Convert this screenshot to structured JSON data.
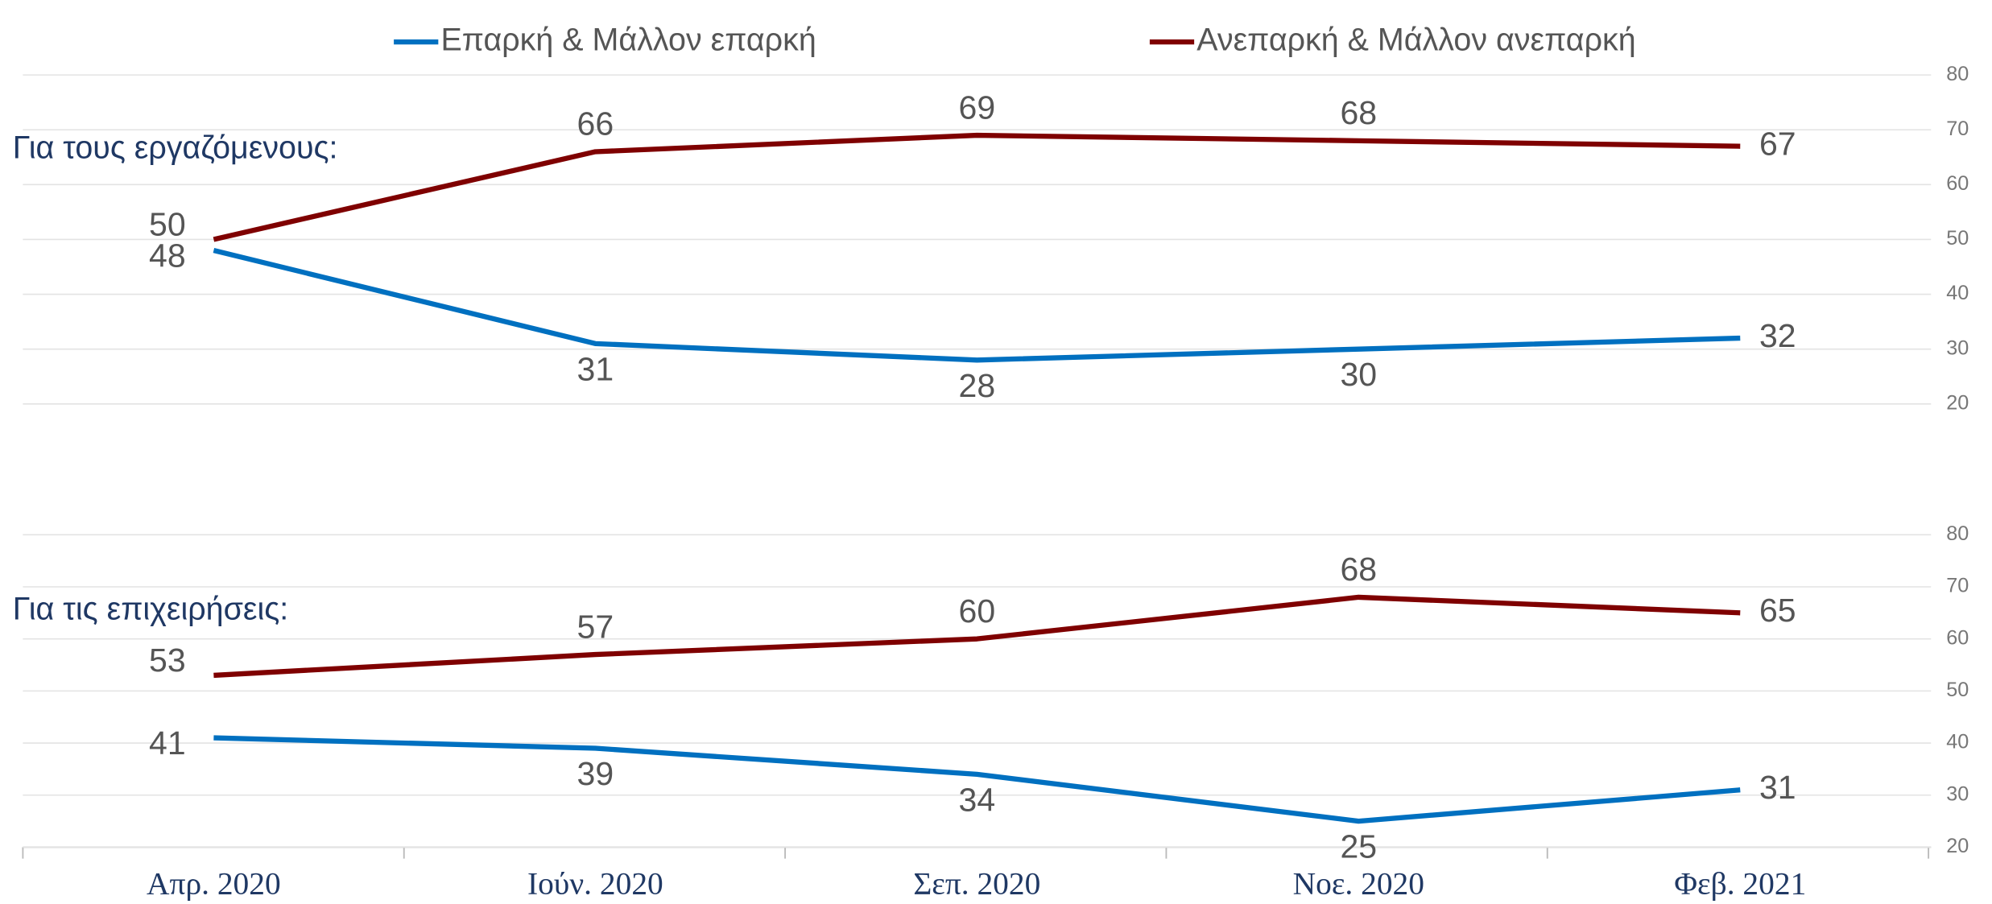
{
  "chart_data": [
    {
      "type": "line",
      "title": "Για τους εργαζόμενους:",
      "ylim": [
        20,
        80
      ],
      "yticks": [
        20,
        30,
        40,
        50,
        60,
        70,
        80
      ],
      "grid": true,
      "legend": "top",
      "series": [
        {
          "name": "Επαρκή & Μάλλον επαρκή",
          "color": "#0070c0",
          "values": [
            48,
            31,
            28,
            30,
            32
          ]
        },
        {
          "name": "Ανεπαρκή & Μάλλον ανεπαρκή",
          "color": "#7f0000",
          "values": [
            50,
            66,
            69,
            68,
            67
          ]
        }
      ]
    },
    {
      "type": "line",
      "title": "Για τις επιχειρήσεις:",
      "categories": [
        "Απρ. 2020",
        "Ιούν. 2020",
        "Σεπ. 2020",
        "Νοε. 2020",
        "Φεβ. 2021"
      ],
      "ylim": [
        20,
        80
      ],
      "yticks": [
        20,
        30,
        40,
        50,
        60,
        70,
        80
      ],
      "grid": true,
      "series": [
        {
          "color": "#0070c0",
          "values": [
            41,
            39,
            34,
            25,
            31
          ]
        },
        {
          "color": "#7f0000",
          "values": [
            53,
            57,
            60,
            68,
            65
          ]
        }
      ]
    }
  ]
}
